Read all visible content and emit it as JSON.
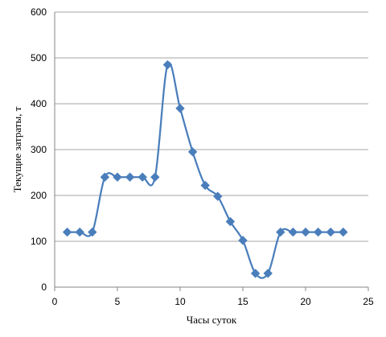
{
  "chart_data": {
    "type": "line",
    "x_label": "Часы суток",
    "y_label": "Текущие затраты, т",
    "x": [
      1,
      2,
      3,
      4,
      5,
      6,
      7,
      8,
      9,
      10,
      11,
      12,
      13,
      14,
      15,
      16,
      17,
      18,
      19,
      20,
      21,
      22,
      23
    ],
    "series": [
      {
        "color": "#4a7ebb",
        "values": [
          120,
          120,
          120,
          240,
          240,
          240,
          240,
          240,
          485,
          390,
          295,
          222,
          198,
          143,
          102,
          30,
          30,
          120,
          120,
          120,
          120,
          120,
          120
        ]
      }
    ],
    "xlim": [
      0,
      25
    ],
    "xticks": [
      0,
      5,
      10,
      15,
      20,
      25
    ],
    "ylim": [
      0,
      600
    ],
    "yticks": [
      0,
      100,
      200,
      300,
      400,
      500,
      600
    ],
    "grid": true,
    "smooth": true
  }
}
